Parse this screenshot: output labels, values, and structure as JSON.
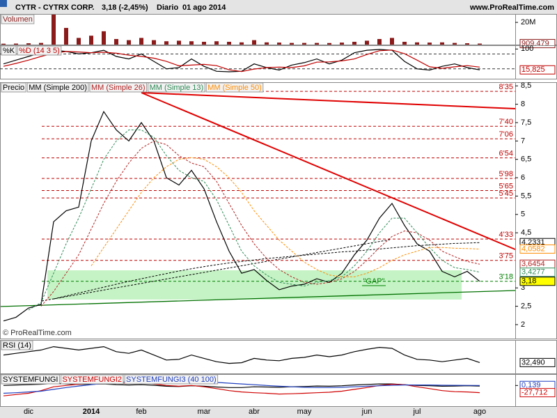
{
  "header": {
    "title": "CYTR - CYTRX CORP.",
    "quote": "3,18 (-2,45%)",
    "period": "Diario",
    "date": "01 ago 2014",
    "site": "www.ProRealTime.com"
  },
  "chart_data": [
    {
      "type": "bar",
      "title": "Volumen",
      "color": "#8b1a1a",
      "values": [
        800000,
        900000,
        1200000,
        1500000,
        27000000,
        15000000,
        6000000,
        8000000,
        12000000,
        5000000,
        4000000,
        6000000,
        4000000,
        3000000,
        3500000,
        3000000,
        2500000,
        3000000,
        2500000,
        2000000,
        4000000,
        2000000,
        1800000,
        1500000,
        1500000,
        1500000,
        1400000,
        1800000,
        2500000,
        3500000,
        5000000,
        6000000,
        2500000,
        2000000,
        1800000,
        2000000,
        1500000,
        1200000,
        909479
      ],
      "ylim": [
        0,
        27600000
      ],
      "yticks": [
        {
          "value": 20000000,
          "label": "20M"
        }
      ],
      "markers": [
        {
          "value": 909479,
          "label": "909.479",
          "color": "#8b1a1a"
        }
      ]
    },
    {
      "type": "line",
      "series": [
        {
          "name": "%K",
          "color": "#000000",
          "values": [
            40,
            55,
            70,
            85,
            95,
            90,
            80,
            85,
            95,
            70,
            60,
            80,
            50,
            20,
            25,
            60,
            30,
            10,
            8,
            10,
            40,
            25,
            15,
            35,
            45,
            60,
            40,
            55,
            85,
            95,
            98,
            95,
            50,
            20,
            15,
            30,
            40,
            25,
            15.825
          ]
        },
        {
          "name": "%D (14 3 5)",
          "color": "#c00000",
          "values": [
            30,
            42,
            55,
            70,
            83,
            90,
            88,
            85,
            87,
            83,
            75,
            70,
            63,
            50,
            32,
            35,
            38,
            33,
            16,
            9,
            19,
            25,
            27,
            25,
            32,
            47,
            48,
            52,
            60,
            78,
            93,
            96,
            81,
            55,
            28,
            22,
            28,
            33,
            27
          ]
        }
      ],
      "ylim": [
        -20,
        115
      ],
      "yticks": [
        100
      ],
      "levels": [
        80,
        20
      ],
      "markers": [
        {
          "value": 15.825,
          "label": "15,825",
          "color": "#c00000"
        }
      ]
    },
    {
      "type": "line",
      "categories": [
        null,
        null,
        "dic",
        null,
        null,
        null,
        null,
        "2014",
        null,
        null,
        null,
        "feb",
        null,
        null,
        null,
        null,
        "mar",
        null,
        null,
        null,
        "abr",
        null,
        null,
        null,
        "may",
        null,
        null,
        null,
        null,
        "jun",
        null,
        null,
        null,
        "jul",
        null,
        null,
        null,
        null,
        "ago"
      ],
      "series": [
        {
          "name": "Precio",
          "color": "#000000",
          "dashed": false,
          "values": [
            2.1,
            2.2,
            2.45,
            2.55,
            4.8,
            5.1,
            5.2,
            7.0,
            7.8,
            7.3,
            7.0,
            7.5,
            7.0,
            6.0,
            5.8,
            6.2,
            5.7,
            4.8,
            4.0,
            3.4,
            3.5,
            3.2,
            2.95,
            3.05,
            3.1,
            3.25,
            3.15,
            3.4,
            3.9,
            4.3,
            4.9,
            5.3,
            4.7,
            4.2,
            4.0,
            3.45,
            3.3,
            3.45,
            3.18
          ]
        },
        {
          "name": "MM (Simple 200)",
          "color": "#000000",
          "dashed": true,
          "values": [
            null,
            null,
            null,
            null,
            2.7,
            2.78,
            2.86,
            2.94,
            3.02,
            3.1,
            3.18,
            3.25,
            3.32,
            3.39,
            3.46,
            3.52,
            3.58,
            3.63,
            3.68,
            3.72,
            3.76,
            3.8,
            3.83,
            3.86,
            3.89,
            3.92,
            3.95,
            3.98,
            4.0,
            4.03,
            4.06,
            4.09,
            4.12,
            4.15,
            4.17,
            4.19,
            4.21,
            4.22,
            4.2331
          ]
        },
        {
          "name": "MM (Simple 26)",
          "color": "#b22222",
          "dashed": true,
          "values": [
            null,
            null,
            null,
            2.5,
            2.9,
            3.4,
            3.9,
            4.6,
            5.3,
            5.9,
            6.4,
            6.8,
            7.0,
            6.9,
            6.6,
            6.4,
            6.3,
            5.9,
            5.3,
            4.7,
            4.2,
            3.8,
            3.5,
            3.3,
            3.15,
            3.1,
            3.15,
            3.25,
            3.45,
            3.75,
            4.1,
            4.4,
            4.55,
            4.5,
            4.3,
            4.0,
            3.85,
            3.72,
            3.6454
          ]
        },
        {
          "name": "MM (Simple 13)",
          "color": "#2e8b57",
          "dashed": true,
          "values": [
            null,
            null,
            2.4,
            2.6,
            3.4,
            4.2,
            4.9,
            5.7,
            6.5,
            7.0,
            7.3,
            7.3,
            7.1,
            6.6,
            6.2,
            6.0,
            5.9,
            5.4,
            4.7,
            4.0,
            3.6,
            3.35,
            3.15,
            3.1,
            3.05,
            3.15,
            3.2,
            3.3,
            3.6,
            4.0,
            4.5,
            4.9,
            4.9,
            4.5,
            4.1,
            3.75,
            3.55,
            3.5,
            3.4277
          ]
        },
        {
          "name": "MM (Simple 50)",
          "color": "#ff8c00",
          "dashed": true,
          "values": [
            null,
            null,
            null,
            null,
            null,
            null,
            null,
            3.6,
            4.1,
            4.6,
            5.1,
            5.6,
            6.0,
            6.3,
            6.5,
            6.55,
            6.5,
            6.3,
            6.0,
            5.6,
            5.1,
            4.7,
            4.3,
            4.0,
            3.7,
            3.5,
            3.35,
            3.3,
            3.3,
            3.4,
            3.55,
            3.75,
            3.9,
            4.0,
            4.1,
            4.1,
            4.08,
            4.07,
            4.0582
          ]
        }
      ],
      "ylim": [
        1.62,
        8.6
      ],
      "yticks": [
        {
          "value": 8.5,
          "label": "8,5"
        },
        8,
        {
          "value": 7.5,
          "label": "7,5"
        },
        7,
        {
          "value": 6.5,
          "label": "6,5"
        },
        6,
        {
          "value": 5.5,
          "label": "5,5"
        },
        5,
        {
          "value": 4.5,
          "label": "4,5"
        },
        3,
        {
          "value": 2.5,
          "label": "2,5"
        },
        2
      ],
      "level_color": "#c00000",
      "levels": [
        {
          "value": 8.35,
          "label": "8'35"
        },
        {
          "value": 7.4,
          "label": "7'40"
        },
        {
          "value": 7.06,
          "label": "7'06"
        },
        {
          "value": 6.54,
          "label": "6'54"
        },
        {
          "value": 5.98,
          "label": "5'98"
        },
        {
          "value": 5.65,
          "label": "5'65"
        },
        {
          "value": 5.45,
          "label": "5'45"
        },
        {
          "value": 4.33,
          "label": "4'33"
        },
        {
          "value": 3.75,
          "label": "3'75"
        },
        {
          "value": 3.18,
          "label": "3'18",
          "color": "#008000"
        }
      ],
      "markers": [
        {
          "value": 4.2331,
          "label": "4,2331",
          "color": "#000000"
        },
        {
          "value": 4.0582,
          "label": "4,0582",
          "color": "#ff8c00"
        },
        {
          "value": 3.6454,
          "label": "3,6454",
          "color": "#b22222"
        },
        {
          "value": 3.4277,
          "label": "3,4277",
          "color": "#2e8b57"
        },
        {
          "value": 3.18,
          "label": "3,18",
          "color": "#000000",
          "fill": "#ffff00"
        }
      ],
      "annotations": [
        "\"GAP\"",
        "© ProRealTime.com"
      ]
    },
    {
      "type": "line",
      "series": [
        {
          "name": "RSI (14)",
          "color": "#000000",
          "values": [
            55,
            60,
            65,
            70,
            80,
            75,
            70,
            75,
            80,
            65,
            60,
            70,
            55,
            40,
            42,
            55,
            45,
            35,
            30,
            32,
            45,
            40,
            38,
            45,
            48,
            55,
            50,
            55,
            65,
            72,
            78,
            75,
            55,
            42,
            40,
            35,
            40,
            45,
            32.49
          ]
        }
      ],
      "ylim": [
        0,
        100
      ],
      "markers": [
        {
          "value": 32.49,
          "label": "32,490",
          "color": "#000000"
        }
      ]
    },
    {
      "type": "line",
      "series": [
        {
          "name": "SYSTEMFUNGI",
          "color": "#000000",
          "values": [
            0,
            2,
            3,
            5,
            8,
            6,
            4,
            5,
            6,
            3,
            2,
            3,
            1,
            -3,
            -4,
            -1,
            -3,
            -6,
            -8,
            -8,
            -5,
            -6,
            -7,
            -5,
            -4,
            -2,
            -3,
            -1,
            2,
            4,
            6,
            6,
            3,
            0,
            -1,
            -3,
            -2,
            -1,
            -2
          ]
        },
        {
          "name": "SYSTEMFUNGI2",
          "color": "#d00000",
          "values": [
            -40,
            -35,
            -30,
            -20,
            -5,
            0,
            5,
            8,
            12,
            10,
            8,
            10,
            6,
            0,
            -3,
            0,
            -5,
            -12,
            -20,
            -25,
            -28,
            -30,
            -33,
            -32,
            -30,
            -28,
            -26,
            -22,
            -15,
            -8,
            0,
            5,
            3,
            -5,
            -12,
            -20,
            -24,
            -25,
            -27.712
          ]
        },
        {
          "name": "SYSTEMFUNGI3 (40 100)",
          "color": "#1f3fbf",
          "values": [
            -30,
            -28,
            -25,
            -22,
            -15,
            -8,
            -2,
            3,
            8,
            12,
            15,
            17,
            18,
            18,
            17,
            16,
            14,
            12,
            9,
            6,
            3,
            0,
            -3,
            -5,
            -7,
            -8,
            -8,
            -7,
            -5,
            -3,
            -1,
            1,
            2,
            2,
            2,
            1,
            0.5,
            0.3,
            0.139
          ]
        }
      ],
      "ylim": [
        -80,
        44
      ],
      "yticks": [
        0
      ],
      "markers": [
        {
          "value": 0.139,
          "label": "0,139",
          "color": "#1f3fbf"
        },
        {
          "value": -27.712,
          "label": "-27,712",
          "color": "#d00000"
        }
      ]
    }
  ]
}
